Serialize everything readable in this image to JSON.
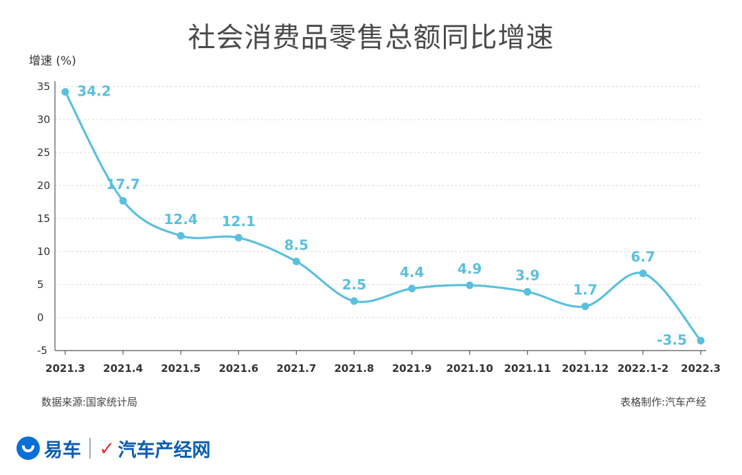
{
  "title": "社会消费品零售总额同比增速",
  "source": "数据来源:国家统计局",
  "credit": "表格制作:汽车产经",
  "brand": {
    "left": "易车",
    "right": "汽车产经网",
    "check_glyph": "✓"
  },
  "colors": {
    "line": "#5bc0dc",
    "label": "#5bc0dc",
    "axis": "#333333",
    "grid": "#d9d9d9",
    "brand": "#0b5db0",
    "brand_red": "#e8333b"
  },
  "chart_data": {
    "type": "line",
    "title": "社会消费品零售总额同比增速",
    "ylabel": "增速 (%)",
    "xlabel": "",
    "categories": [
      "2021.3",
      "2021.4",
      "2021.5",
      "2021.6",
      "2021.7",
      "2021.8",
      "2021.9",
      "2021.10",
      "2021.11",
      "2021.12",
      "2022.1-2",
      "2022.3"
    ],
    "series": [
      {
        "name": "增速",
        "values": [
          34.2,
          17.7,
          12.4,
          12.1,
          8.5,
          2.5,
          4.4,
          4.9,
          3.9,
          1.7,
          6.7,
          -3.5
        ]
      }
    ],
    "data_labels": [
      "34.2",
      "17.7",
      "12.4",
      "12.1",
      "8.5",
      "2.5",
      "4.4",
      "4.9",
      "3.9",
      "1.7",
      "6.7",
      "-3.5"
    ],
    "yticks": [
      -5,
      0,
      5,
      10,
      15,
      20,
      25,
      30,
      35
    ],
    "ylim": [
      -5,
      35
    ],
    "grid": true,
    "smooth": true
  }
}
